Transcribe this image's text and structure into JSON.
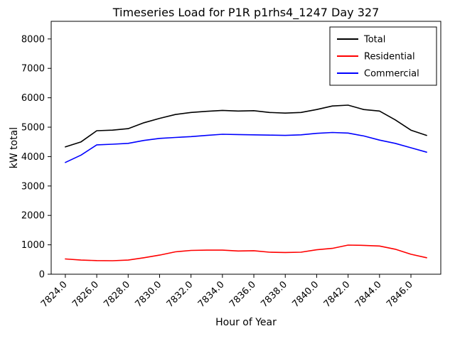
{
  "chart_data": {
    "type": "line",
    "title": "Timeseries Load for P1R p1rhs4_1247  Day 327",
    "xlabel": "Hour of Year",
    "ylabel": "kW total",
    "xlim": [
      7823.1,
      7847.9
    ],
    "ylim": [
      0,
      8600
    ],
    "grid": false,
    "legend_position": "upper right",
    "x": [
      7824,
      7825,
      7826,
      7827,
      7828,
      7829,
      7830,
      7831,
      7832,
      7833,
      7834,
      7835,
      7836,
      7837,
      7838,
      7839,
      7840,
      7841,
      7842,
      7843,
      7844,
      7845,
      7846,
      7847
    ],
    "xticks": [
      7824,
      7826,
      7828,
      7830,
      7832,
      7834,
      7836,
      7838,
      7840,
      7842,
      7844,
      7846
    ],
    "xtick_labels": [
      "7824.0",
      "7826.0",
      "7828.0",
      "7830.0",
      "7832.0",
      "7834.0",
      "7836.0",
      "7838.0",
      "7840.0",
      "7842.0",
      "7844.0",
      "7846.0"
    ],
    "yticks": [
      0,
      1000,
      2000,
      3000,
      4000,
      5000,
      6000,
      7000,
      8000
    ],
    "ytick_labels": [
      "0",
      "1000",
      "2000",
      "3000",
      "4000",
      "5000",
      "6000",
      "7000",
      "8000"
    ],
    "series": [
      {
        "name": "Total",
        "color": "#000000",
        "values": [
          4330,
          4500,
          4880,
          4900,
          4950,
          5150,
          5300,
          5430,
          5500,
          5540,
          5570,
          5550,
          5560,
          5500,
          5480,
          5500,
          5600,
          5720,
          5750,
          5600,
          5550,
          5250,
          4900,
          4720
        ]
      },
      {
        "name": "Residential",
        "color": "#ff0000",
        "values": [
          520,
          480,
          465,
          460,
          480,
          560,
          650,
          760,
          810,
          820,
          820,
          790,
          800,
          750,
          740,
          750,
          830,
          880,
          990,
          980,
          960,
          850,
          680,
          560
        ]
      },
      {
        "name": "Commercial",
        "color": "#0000ff",
        "values": [
          3800,
          4050,
          4400,
          4420,
          4450,
          4550,
          4620,
          4650,
          4680,
          4720,
          4760,
          4750,
          4740,
          4730,
          4720,
          4740,
          4790,
          4820,
          4800,
          4700,
          4560,
          4450,
          4300,
          4150
        ]
      }
    ]
  }
}
